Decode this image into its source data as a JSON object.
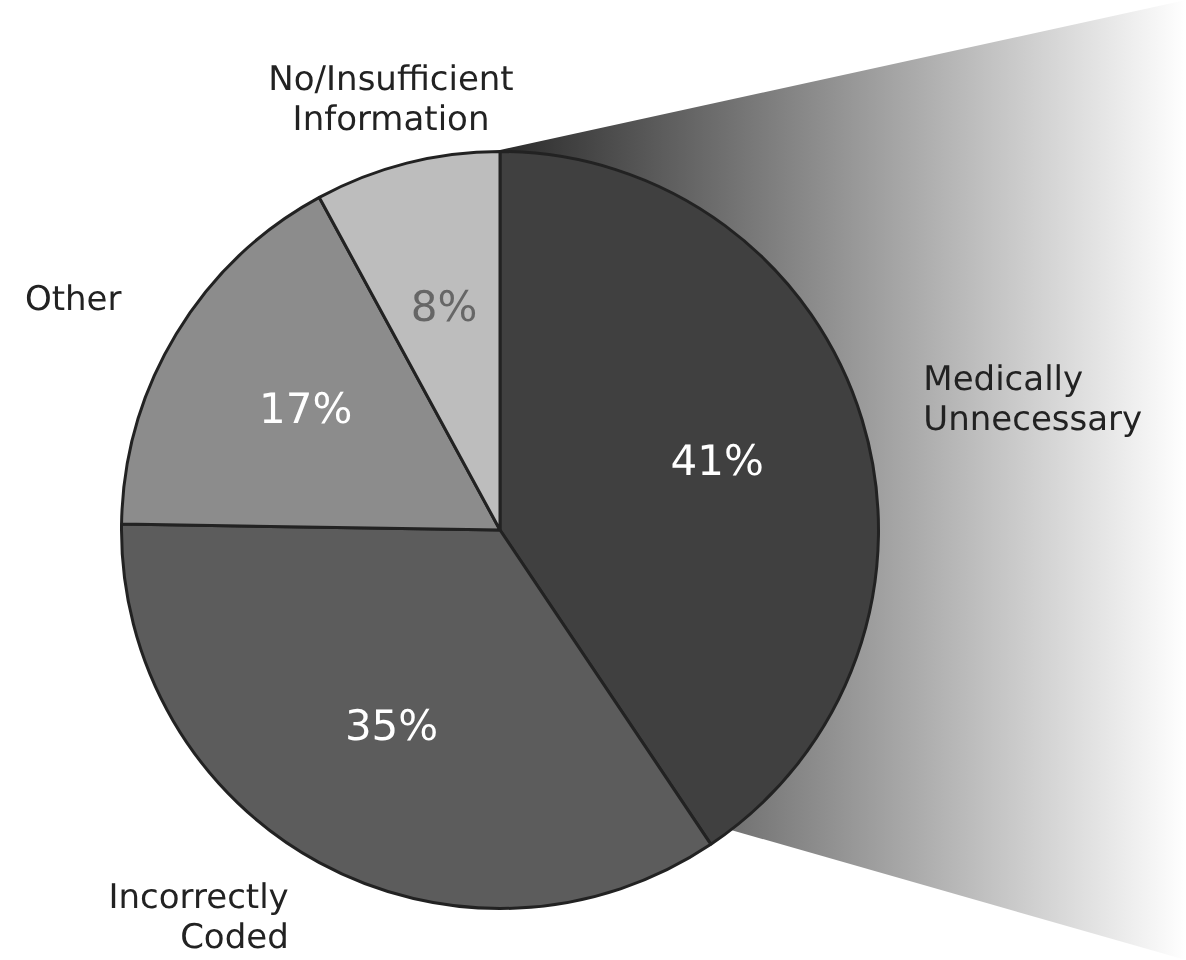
{
  "chart_data": {
    "type": "pie",
    "categories": [
      "Medically Unnecessary",
      "Incorrectly Coded",
      "Other",
      "No/Insufficient Information"
    ],
    "values": [
      41,
      35,
      17,
      8
    ],
    "colors": [
      "#404040",
      "#5c5c5c",
      "#8c8c8c",
      "#bdbdbd"
    ],
    "value_labels": [
      "41%",
      "35%",
      "17%",
      "8%"
    ],
    "legend": false
  }
}
